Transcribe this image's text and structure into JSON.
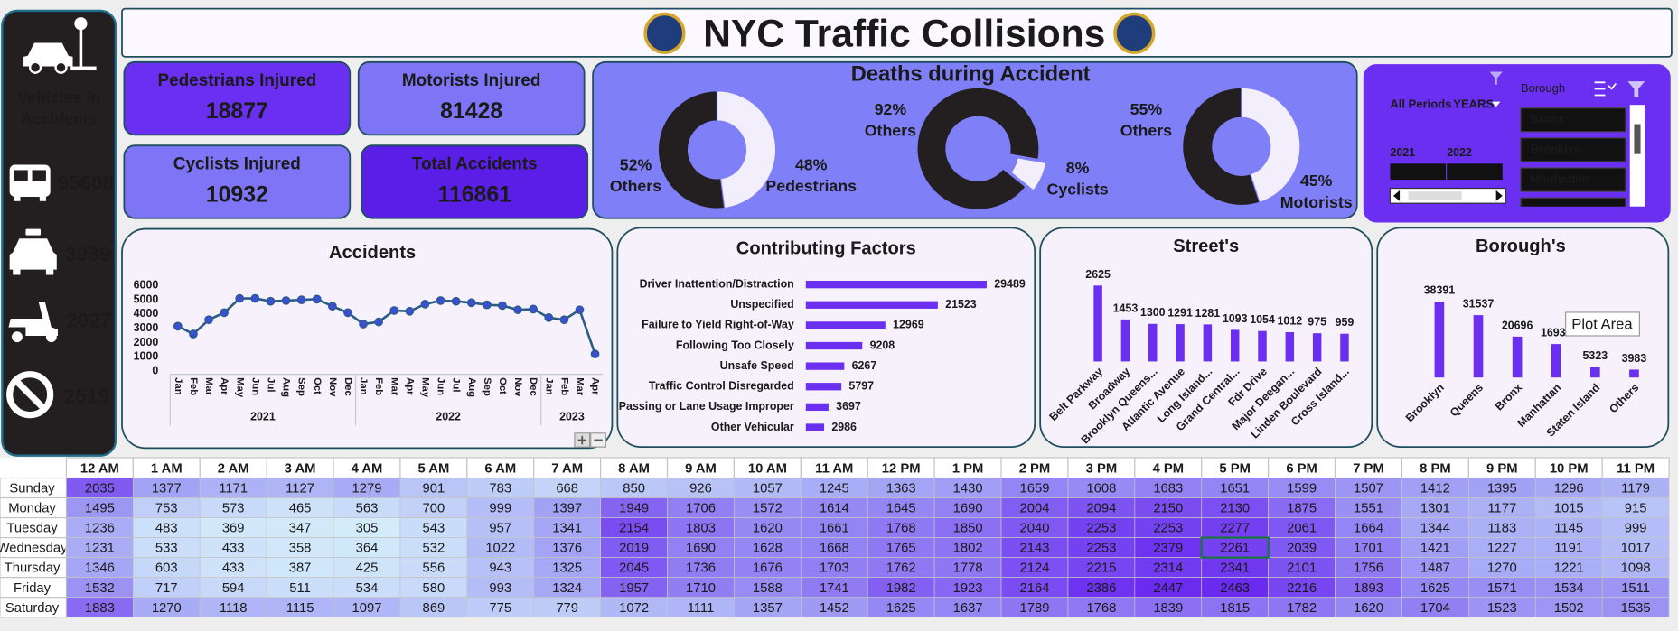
{
  "header": {
    "title": "NYC Traffic Collisions"
  },
  "vehicles": {
    "title_lines": [
      "Vehicles in",
      "Accidents"
    ],
    "values": [
      95608,
      3939,
      2027,
      2519
    ]
  },
  "kpis": [
    {
      "label": "Pedestrians Injured",
      "value": 18877
    },
    {
      "label": "Motorists Injured",
      "value": 81428
    },
    {
      "label": "Cyclists Injured",
      "value": 10932
    },
    {
      "label": "Total Accidents",
      "value": 116861
    }
  ],
  "deaths_panel": {
    "title": "Deaths during Accident"
  },
  "chart_data": [
    {
      "type": "donut",
      "categories": [
        "Others",
        "Pedestrians"
      ],
      "values": [
        52,
        48
      ],
      "value_labels": [
        "52%",
        "48%"
      ],
      "colors": [
        "#231f20",
        "#f3eefb"
      ]
    },
    {
      "type": "donut",
      "categories": [
        "Others",
        "Cyclists"
      ],
      "values": [
        92,
        8
      ],
      "value_labels": [
        "92%",
        "8%"
      ],
      "colors": [
        "#231f20",
        "#f3eefb"
      ]
    },
    {
      "type": "donut",
      "categories": [
        "Others",
        "Motorists"
      ],
      "values": [
        55,
        45
      ],
      "value_labels": [
        "55%",
        "45%"
      ],
      "colors": [
        "#231f20",
        "#f3eefb"
      ]
    },
    {
      "type": "line",
      "title": "Accidents",
      "categories": [
        "Jan",
        "Feb",
        "Mar",
        "Apr",
        "May",
        "Jun",
        "Jul",
        "Aug",
        "Sep",
        "Oct",
        "Nov",
        "Dec",
        "Jan",
        "Feb",
        "Mar",
        "Apr",
        "May",
        "Jun",
        "Jul",
        "Aug",
        "Sep",
        "Oct",
        "Nov",
        "Dec",
        "Jan",
        "Feb",
        "Mar",
        "Apr"
      ],
      "groups": [
        "2021",
        "2022",
        "2023"
      ],
      "values": [
        3150,
        2600,
        3600,
        4100,
        5100,
        5100,
        4900,
        4950,
        5000,
        5050,
        4550,
        4100,
        3300,
        3450,
        4250,
        4200,
        4700,
        4950,
        4900,
        4800,
        4650,
        4600,
        4300,
        4350,
        3750,
        3600,
        4300,
        1200
      ],
      "color": "#2a5d84",
      "marker_color": "#3b4fd0",
      "ylim": [
        0,
        6000
      ],
      "yticks": [
        0,
        1000,
        2000,
        3000,
        4000,
        5000,
        6000
      ]
    },
    {
      "type": "bar",
      "orientation": "horizontal",
      "title": "Contributing Factors",
      "categories": [
        "Driver Inattention/Distraction",
        "Unspecified",
        "Failure to Yield Right-of-Way",
        "Following Too Closely",
        "Unsafe Speed",
        "Traffic Control Disregarded",
        "Passing or Lane Usage Improper",
        "Other Vehicular"
      ],
      "values": [
        29489,
        21523,
        12969,
        9208,
        6267,
        5797,
        3697,
        2986
      ],
      "color": "#6a2ff0"
    },
    {
      "type": "bar",
      "orientation": "vertical",
      "title": "Street's",
      "categories": [
        "Belt Parkway",
        "Broadway",
        "Brooklyn Queens...",
        "Atlantic Avenue",
        "Long Island...",
        "Grand Central...",
        "Fdr Drive",
        "Major Deegan...",
        "Linden Boulevard",
        "Cross Island..."
      ],
      "values": [
        2625,
        1453,
        1300,
        1291,
        1281,
        1093,
        1054,
        1012,
        975,
        959
      ],
      "color": "#6a2ff0"
    },
    {
      "type": "bar",
      "orientation": "vertical",
      "title": "Borough's",
      "categories": [
        "Brooklyn",
        "Queens",
        "Bronx",
        "Manhattan",
        "Staten Island",
        "Others"
      ],
      "values": [
        38391,
        31537,
        20696,
        16930,
        5323,
        3983
      ],
      "color": "#6a2ff0"
    }
  ],
  "slicer": {
    "period": "All Periods",
    "level": "YEARS",
    "years": [
      "2021",
      "2022"
    ],
    "field": "Borough",
    "items": [
      "Bronx",
      "Brooklyn",
      "Manhattan"
    ]
  },
  "tooltip": "Plot Area",
  "heatmap": {
    "columns": [
      "12 AM",
      "1 AM",
      "2 AM",
      "3 AM",
      "4 AM",
      "5 AM",
      "6 AM",
      "7 AM",
      "8 AM",
      "9 AM",
      "10 AM",
      "11 AM",
      "12 PM",
      "1 PM",
      "2 PM",
      "3 PM",
      "4 PM",
      "5 PM",
      "6 PM",
      "7 PM",
      "8 PM",
      "9 PM",
      "10 PM",
      "11 PM"
    ],
    "rows": [
      {
        "label": "Sunday",
        "values": [
          2035,
          1377,
          1171,
          1127,
          1279,
          901,
          783,
          668,
          850,
          926,
          1057,
          1245,
          1363,
          1430,
          1659,
          1608,
          1683,
          1651,
          1599,
          1507,
          1412,
          1395,
          1296,
          1179
        ]
      },
      {
        "label": "Monday",
        "values": [
          1495,
          753,
          573,
          465,
          563,
          700,
          999,
          1397,
          1949,
          1706,
          1572,
          1614,
          1645,
          1690,
          2004,
          2094,
          2150,
          2130,
          1875,
          1551,
          1301,
          1177,
          1015,
          915
        ]
      },
      {
        "label": "Tuesday",
        "values": [
          1236,
          483,
          369,
          347,
          305,
          543,
          957,
          1341,
          2154,
          1803,
          1620,
          1661,
          1768,
          1850,
          2040,
          2253,
          2253,
          2277,
          2061,
          1664,
          1344,
          1183,
          1145,
          999
        ]
      },
      {
        "label": "Wednesday",
        "values": [
          1231,
          533,
          433,
          358,
          364,
          532,
          1022,
          1376,
          2019,
          1690,
          1628,
          1668,
          1765,
          1802,
          2143,
          2253,
          2379,
          2261,
          2039,
          1701,
          1421,
          1227,
          1191,
          1017
        ]
      },
      {
        "label": "Thursday",
        "values": [
          1346,
          603,
          433,
          387,
          425,
          556,
          943,
          1325,
          2045,
          1736,
          1676,
          1703,
          1762,
          1778,
          2124,
          2215,
          2314,
          2341,
          2101,
          1756,
          1487,
          1270,
          1221,
          1098
        ]
      },
      {
        "label": "Friday",
        "values": [
          1532,
          717,
          594,
          511,
          534,
          580,
          993,
          1324,
          1957,
          1710,
          1588,
          1741,
          1982,
          1923,
          2164,
          2386,
          2447,
          2463,
          2216,
          1893,
          1625,
          1571,
          1534,
          1511
        ]
      },
      {
        "label": "Saturday",
        "values": [
          1883,
          1270,
          1118,
          1115,
          1097,
          869,
          775,
          779,
          1072,
          1111,
          1357,
          1452,
          1625,
          1637,
          1789,
          1768,
          1839,
          1815,
          1782,
          1620,
          1704,
          1523,
          1502,
          1535
        ]
      }
    ]
  }
}
